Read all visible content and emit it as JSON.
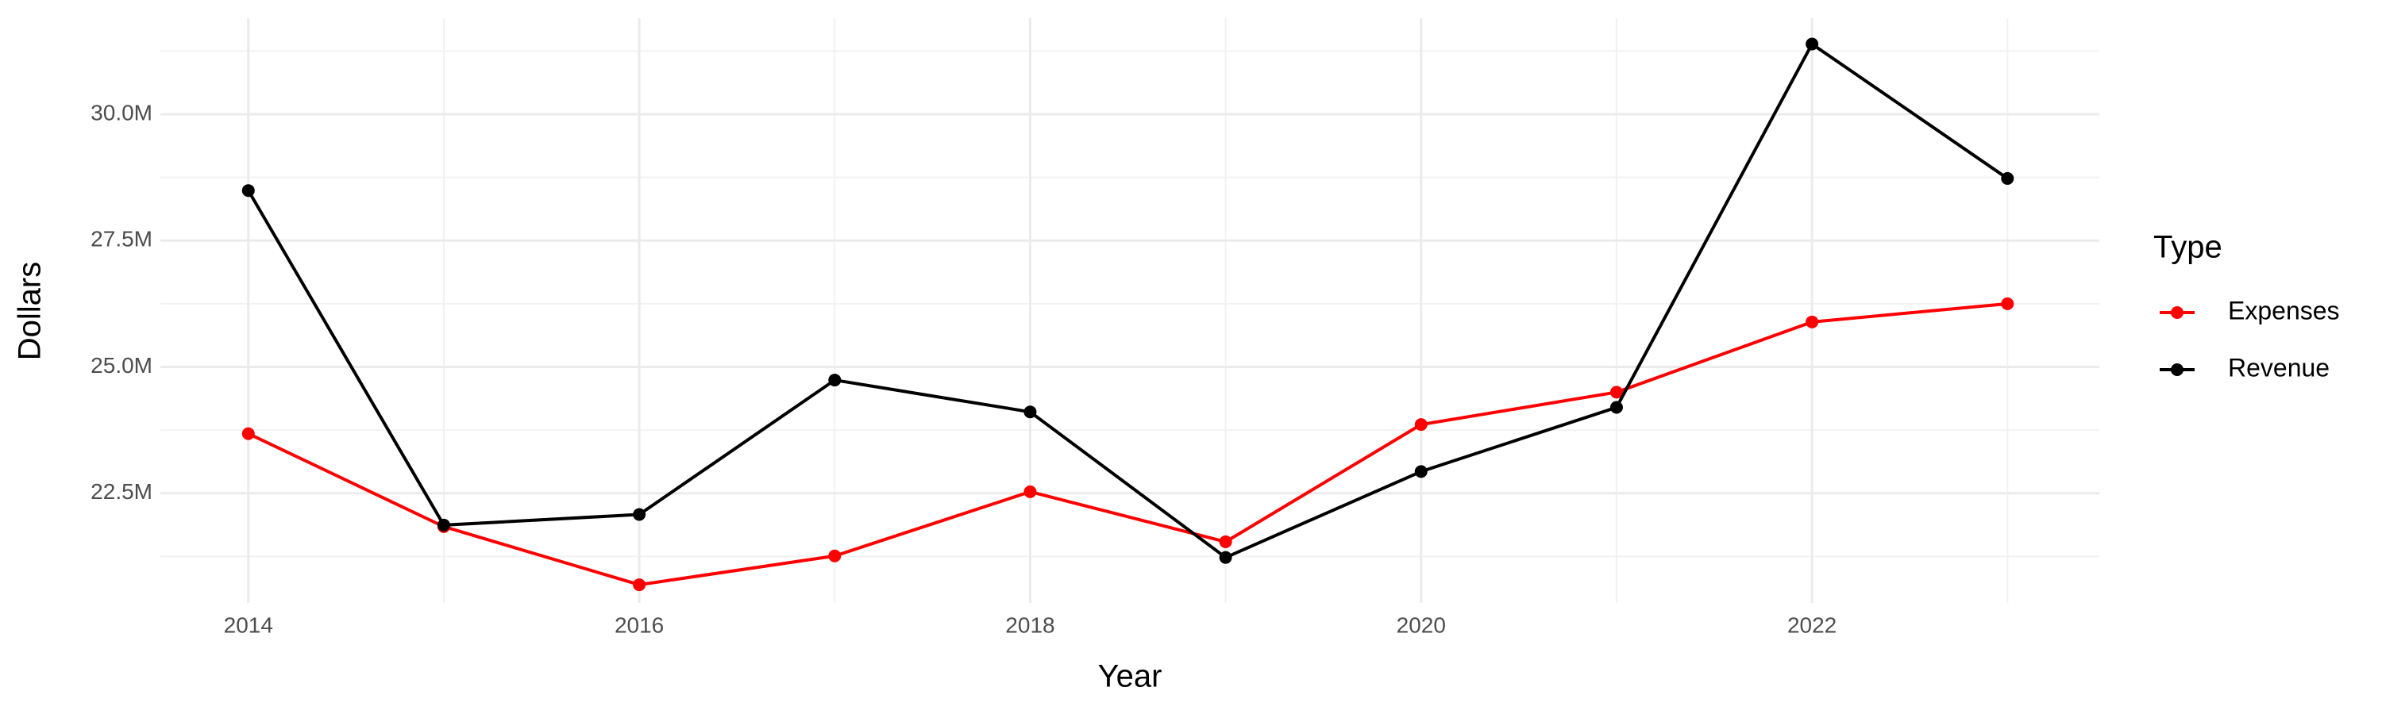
{
  "chart_data": {
    "type": "line",
    "x_label": "Year",
    "y_label": "Dollars",
    "legend_title": "Type",
    "legend_position": "right",
    "grid": true,
    "x": [
      2014,
      2015,
      2016,
      2017,
      2018,
      2019,
      2020,
      2021,
      2022,
      2023
    ],
    "series": [
      {
        "name": "Expenses",
        "color": "#ff0000",
        "values": [
          23680000,
          21840000,
          20690000,
          21260000,
          22530000,
          21540000,
          23860000,
          24500000,
          25890000,
          26250000
        ]
      },
      {
        "name": "Revenue",
        "color": "#000000",
        "values": [
          28490000,
          21870000,
          22080000,
          24740000,
          24110000,
          21230000,
          22930000,
          24200000,
          31390000,
          28730000
        ]
      }
    ],
    "xlim": [
      2013.55,
      2023.47
    ],
    "xticks": [
      2014,
      2016,
      2018,
      2020,
      2022
    ],
    "ylim": [
      20330000,
      31900000
    ],
    "yticks": [
      {
        "value": 22500000,
        "label": "22.5M"
      },
      {
        "value": 25000000,
        "label": "25.0M"
      },
      {
        "value": 27500000,
        "label": "27.5M"
      },
      {
        "value": 30000000,
        "label": "30.0M"
      }
    ]
  }
}
